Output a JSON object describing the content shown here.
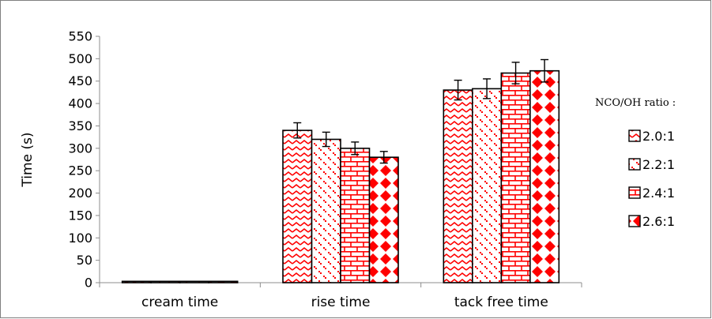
{
  "chart_data": {
    "type": "bar",
    "ylabel": "Time (s)",
    "ylim": [
      0,
      550
    ],
    "yticks": [
      0,
      50,
      100,
      150,
      200,
      250,
      300,
      350,
      400,
      450,
      500,
      550
    ],
    "categories": [
      "cream time",
      "rise time",
      "tack free time"
    ],
    "legend_title": "NCO/OH ratio :",
    "legend_position": "right",
    "grid": false,
    "series": [
      {
        "name": "2.0:1",
        "values": [
          3,
          340,
          430
        ],
        "errors": [
          0,
          17,
          22
        ],
        "color": "#ff0000",
        "pattern": "zigzag"
      },
      {
        "name": "2.2:1",
        "values": [
          3,
          320,
          433
        ],
        "errors": [
          0,
          16,
          22
        ],
        "color": "#ff0000",
        "pattern": "dots"
      },
      {
        "name": "2.4:1",
        "values": [
          3,
          300,
          468
        ],
        "errors": [
          0,
          14,
          24
        ],
        "color": "#ff0000",
        "pattern": "bricks"
      },
      {
        "name": "2.6:1",
        "values": [
          3,
          280,
          473
        ],
        "errors": [
          0,
          13,
          25
        ],
        "color": "#ff0000",
        "pattern": "diamonds"
      }
    ]
  }
}
